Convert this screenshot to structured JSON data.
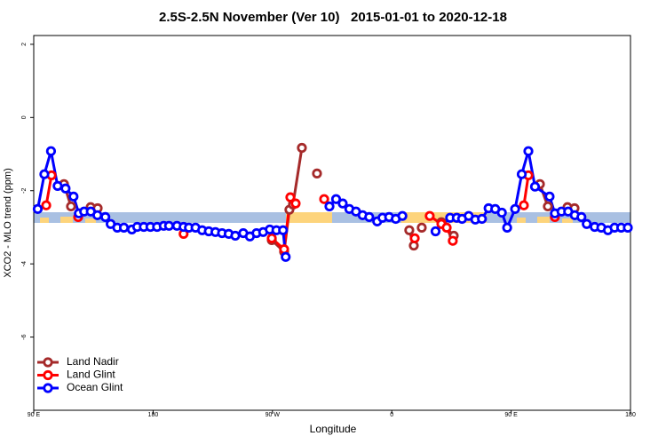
{
  "chart_data": {
    "type": "line",
    "title": "2.5S-2.5N November (Ver 10)   2015-01-01 to 2020-12-18",
    "xlabel": "Longitude",
    "ylabel": "XCO2 - MLO trend (ppm)",
    "xlim": [
      90,
      540
    ],
    "ylim": [
      -8,
      2.24
    ],
    "xticks": [
      {
        "value": 90,
        "label": "90 E"
      },
      180,
      {
        "value": 270,
        "label": "90 W"
      },
      {
        "value": 360,
        "label": "0"
      },
      {
        "value": 450,
        "label": "90 E"
      },
      {
        "value": 540,
        "label": "180"
      }
    ],
    "yticks": [
      -6,
      -4,
      -2,
      0,
      2
    ],
    "legend": "bottom-left",
    "series": [
      {
        "name": "Land Nadir",
        "color": "#a52a2a",
        "x": [
          112.8,
          118.1,
          125,
          132.9,
          138.2,
          200,
          269.5,
          278.8,
          282.8,
          285.5,
          292.2,
          298,
          303.6,
          340,
          373.2,
          376.6,
          380,
          382.6,
          390,
          397.4,
          406.7,
          440,
          471.7,
          477.7,
          485,
          492.5,
          497.8
        ],
        "values": [
          -1.82,
          -2.43,
          null,
          -2.45,
          -2.48,
          null,
          -3.35,
          -3.67,
          -2.52,
          -2.38,
          -0.83,
          null,
          -1.53,
          null,
          -3.08,
          -3.5,
          null,
          -3.01,
          null,
          -2.86,
          -3.23,
          null,
          -1.82,
          -2.43,
          null,
          -2.45,
          -2.48
        ]
      },
      {
        "name": "Land Glint",
        "color": "#ff0000",
        "x": [
          99.4,
          103.4,
          113,
          123.5,
          160,
          203,
          240,
          269.5,
          278.8,
          283.5,
          287.5,
          298,
          309,
          340,
          377.3,
          383,
          388.6,
          397.4,
          401.4,
          406,
          430,
          459.6,
          463,
          473,
          483
        ],
        "values": [
          -2.4,
          -1.58,
          null,
          -2.72,
          null,
          -3.18,
          null,
          -3.3,
          -3.6,
          -2.18,
          -2.35,
          null,
          -2.23,
          null,
          -3.3,
          null,
          -2.69,
          -2.91,
          -3.01,
          -3.37,
          null,
          -2.4,
          -1.58,
          null,
          -2.72
        ]
      },
      {
        "name": "Ocean Glint",
        "color": "#0000ff",
        "x": [
          93,
          98,
          103,
          108,
          114,
          120,
          124,
          128,
          133,
          138,
          144,
          148,
          153,
          158,
          164,
          168,
          173,
          178,
          183,
          188,
          192,
          198,
          203,
          207,
          212,
          217,
          222,
          227,
          232,
          237,
          242,
          248,
          253,
          258,
          263,
          268,
          273,
          278,
          280,
          300,
          313,
          318,
          323,
          328,
          333,
          338,
          343,
          349,
          353,
          358,
          363,
          368,
          380,
          393,
          404,
          409,
          413,
          418,
          423,
          428,
          433,
          438,
          443,
          447,
          453,
          458,
          463,
          468,
          479,
          483,
          488,
          493,
          498,
          503,
          507,
          513,
          518,
          523,
          528,
          533,
          538
        ],
        "values": [
          -2.5,
          -1.55,
          -0.92,
          -1.87,
          -1.94,
          -2.16,
          -2.62,
          -2.57,
          -2.57,
          -2.67,
          -2.72,
          -2.91,
          -3.01,
          -3.01,
          -3.06,
          -2.99,
          -2.99,
          -2.99,
          -2.99,
          -2.96,
          -2.96,
          -2.96,
          -2.99,
          -3.01,
          -3.01,
          -3.08,
          -3.11,
          -3.13,
          -3.16,
          -3.18,
          -3.23,
          -3.16,
          -3.25,
          -3.16,
          -3.13,
          -3.06,
          -3.08,
          -3.08,
          -3.81,
          null,
          -2.43,
          -2.23,
          -2.35,
          -2.5,
          -2.57,
          -2.67,
          -2.72,
          -2.84,
          -2.74,
          -2.72,
          -2.77,
          -2.69,
          null,
          -3.11,
          -2.74,
          -2.74,
          -2.77,
          -2.69,
          -2.79,
          -2.77,
          -2.48,
          -2.5,
          -2.6,
          -3.01,
          -2.5,
          -1.55,
          -0.92,
          -1.89,
          -2.16,
          -2.62,
          -2.57,
          -2.57,
          -2.67,
          -2.72,
          -2.91,
          -2.99,
          -3.01,
          -3.08,
          -3.01,
          -3.01,
          -3.01
        ]
      }
    ]
  }
}
